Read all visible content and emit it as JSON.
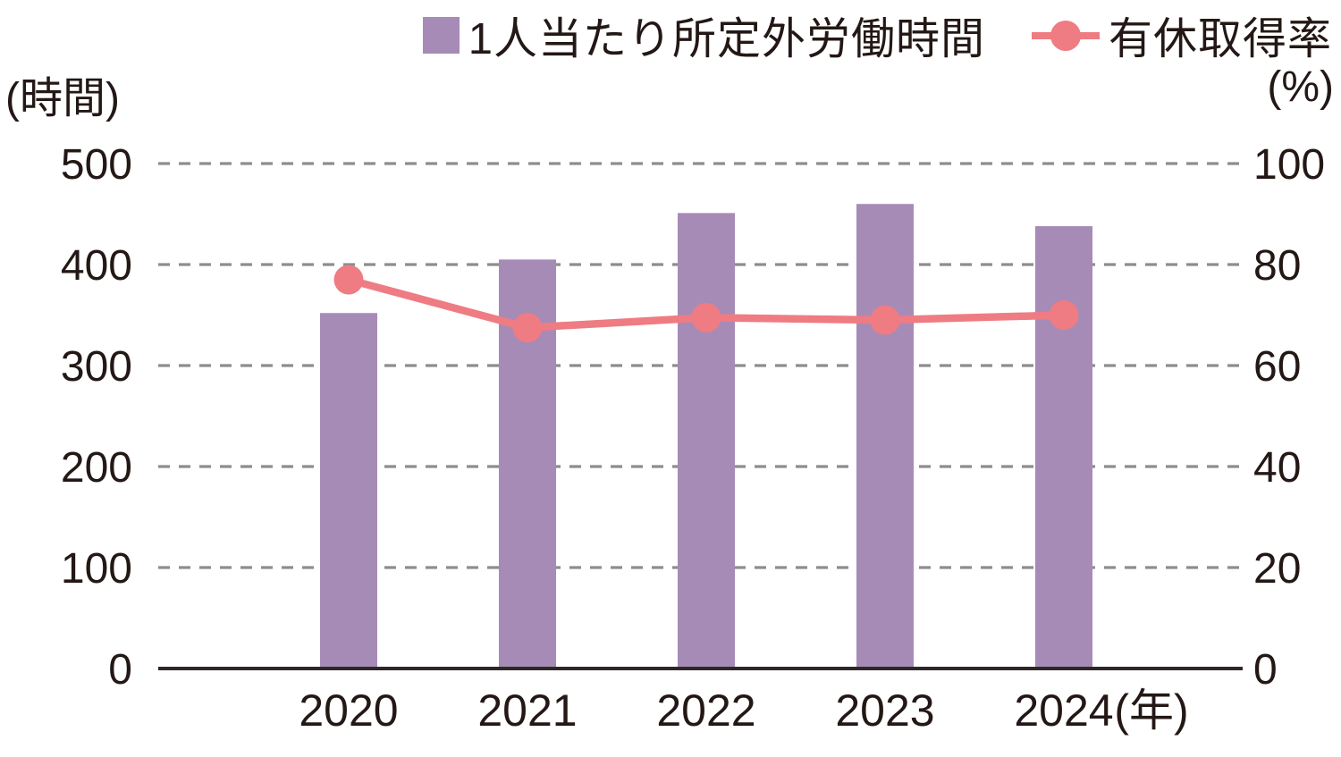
{
  "legend": {
    "bar": {
      "label": "1人当たり所定外労働時間",
      "marker": "square",
      "color": "#a78bb7"
    },
    "line": {
      "label": "有休取得率",
      "marker": "line-dot",
      "color": "#ee7c82"
    }
  },
  "axes": {
    "left_unit": "(時間)",
    "right_unit": "(%)",
    "x_unit": "(年)"
  },
  "chart_data": {
    "type": "bar",
    "title": "",
    "categories": [
      "2020",
      "2021",
      "2022",
      "2023",
      "2024"
    ],
    "series": [
      {
        "name": "1人当たり所定外労働時間",
        "type": "bar",
        "axis": "left",
        "color": "#a78bb7",
        "values": [
          352,
          405,
          451,
          460,
          438
        ]
      },
      {
        "name": "有休取得率",
        "type": "line",
        "axis": "right",
        "color": "#ee7c82",
        "values": [
          77,
          67.5,
          69.5,
          69,
          70
        ]
      }
    ],
    "left_axis": {
      "label": "(時間)",
      "min": 0,
      "max": 500,
      "ticks": [
        500,
        400,
        300,
        200,
        100,
        0
      ]
    },
    "right_axis": {
      "label": "(%)",
      "min": 0,
      "max": 100,
      "ticks": [
        100,
        80,
        60,
        40,
        20,
        0
      ]
    },
    "x_label": "(年)",
    "grid": "dashed-horizontal",
    "legend_position": "top"
  },
  "colors": {
    "bar": "#a78bb7",
    "line": "#ee7c82",
    "text": "#231815",
    "grid": "#8d8d8d",
    "axis": "#2f2725",
    "background": "#ffffff"
  }
}
